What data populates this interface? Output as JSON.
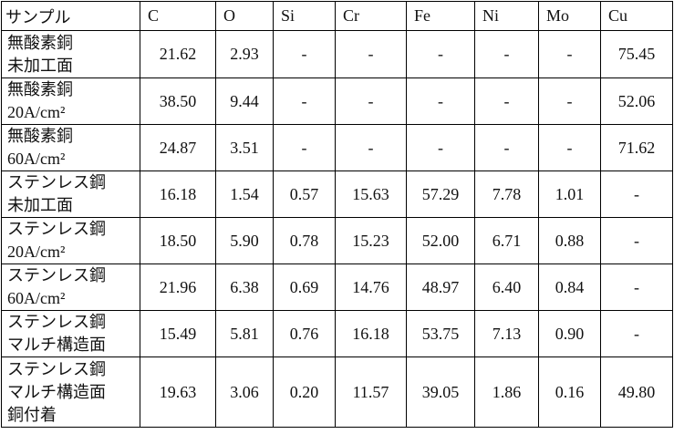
{
  "table": {
    "header": [
      "サンプル",
      "C",
      "O",
      "Si",
      "Cr",
      "Fe",
      "Ni",
      "Mo",
      "Cu"
    ],
    "rows": [
      {
        "label": [
          "無酸素銅",
          "未加工面"
        ],
        "cells": [
          "21.62",
          "2.93",
          "-",
          "-",
          "-",
          "-",
          "-",
          "75.45"
        ]
      },
      {
        "label": [
          "無酸素銅",
          "20A/cm²"
        ],
        "cells": [
          "38.50",
          "9.44",
          "-",
          "-",
          "-",
          "-",
          "-",
          "52.06"
        ]
      },
      {
        "label": [
          "無酸素銅",
          "60A/cm²"
        ],
        "cells": [
          "24.87",
          "3.51",
          "-",
          "-",
          "-",
          "-",
          "-",
          "71.62"
        ]
      },
      {
        "label": [
          "ステンレス鋼",
          "未加工面"
        ],
        "cells": [
          "16.18",
          "1.54",
          "0.57",
          "15.63",
          "57.29",
          "7.78",
          "1.01",
          "-"
        ]
      },
      {
        "label": [
          "ステンレス鋼",
          "20A/cm²"
        ],
        "cells": [
          "18.50",
          "5.90",
          "0.78",
          "15.23",
          "52.00",
          "6.71",
          "0.88",
          "-"
        ]
      },
      {
        "label": [
          "ステンレス鋼",
          "60A/cm²"
        ],
        "cells": [
          "21.96",
          "6.38",
          "0.69",
          "14.76",
          "48.97",
          "6.40",
          "0.84",
          "-"
        ]
      },
      {
        "label": [
          "ステンレス鋼",
          "マルチ構造面"
        ],
        "cells": [
          "15.49",
          "5.81",
          "0.76",
          "16.18",
          "53.75",
          "7.13",
          "0.90",
          "-"
        ]
      },
      {
        "label": [
          "ステンレス鋼",
          "マルチ構造面",
          "銅付着"
        ],
        "cells": [
          "19.63",
          "3.06",
          "0.20",
          "11.57",
          "39.05",
          "1.86",
          "0.16",
          "49.80"
        ]
      }
    ]
  }
}
